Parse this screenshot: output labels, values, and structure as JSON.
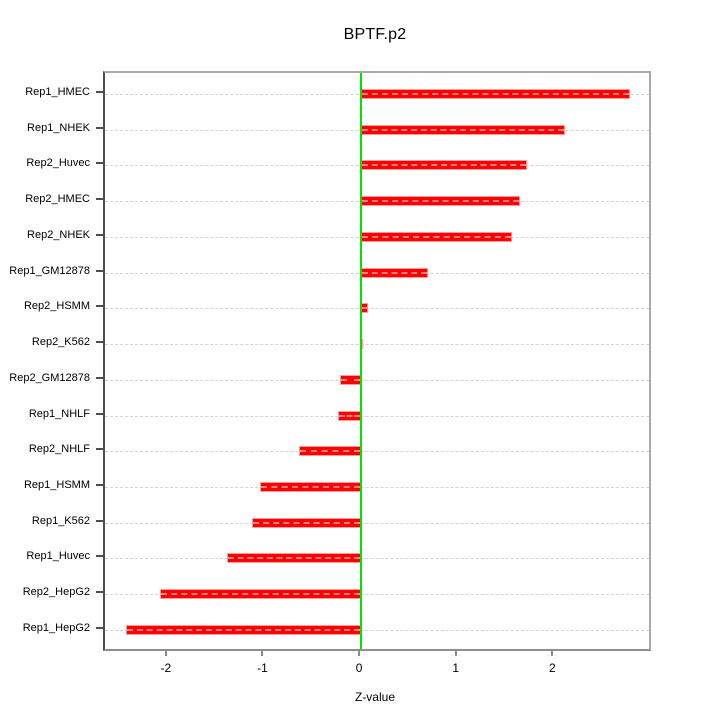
{
  "chart_data": {
    "type": "bar",
    "orientation": "horizontal",
    "title": "BPTF.p2",
    "xlabel": "Z-value",
    "ylabel": "",
    "categories": [
      "Rep1_HMEC",
      "Rep1_NHEK",
      "Rep2_Huvec",
      "Rep2_HMEC",
      "Rep2_NHEK",
      "Rep1_GM12878",
      "Rep2_HSMM",
      "Rep2_K562",
      "Rep2_GM12878",
      "Rep1_NHLF",
      "Rep2_NHLF",
      "Rep1_HSMM",
      "Rep1_K562",
      "Rep1_Huvec",
      "Rep2_HepG2",
      "Rep1_HepG2"
    ],
    "values": [
      2.78,
      2.11,
      1.72,
      1.65,
      1.56,
      0.69,
      0.07,
      0.02,
      -0.22,
      -0.24,
      -0.64,
      -1.05,
      -1.13,
      -1.39,
      -2.08,
      -2.43
    ],
    "xlim": [
      -2.65,
      2.98
    ],
    "xticks": [
      -2,
      -1,
      0,
      1,
      2
    ],
    "zero_line": 0,
    "grid": "horizontal dashed line per category",
    "legend": "none",
    "colors": {
      "bar_fill": "#ff0000",
      "bar_edge": "#ff9b9b",
      "zero_line": "#00e400",
      "gridline": "#d4d4d4",
      "box": "#a8a8a8",
      "tick": "#4d4d4d",
      "text": "#000000",
      "background": "#ffffff"
    }
  }
}
